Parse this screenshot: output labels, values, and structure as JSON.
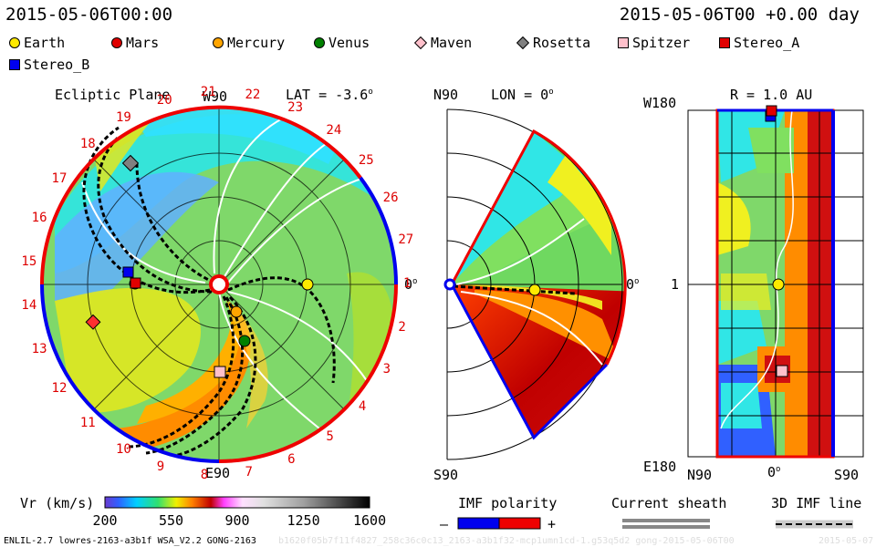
{
  "header": {
    "left_time": "2015-05-06T00:00",
    "right_time": "2015-05-06T00 +0.00 day"
  },
  "legend": [
    {
      "label": "Earth",
      "color": "#ffea00",
      "shape": "circle"
    },
    {
      "label": "Mars",
      "color": "#e00000",
      "shape": "circle"
    },
    {
      "label": "Mercury",
      "color": "#ffa500",
      "shape": "circle"
    },
    {
      "label": "Venus",
      "color": "#008000",
      "shape": "circle"
    },
    {
      "label": "Maven",
      "color": "#ffc0cb",
      "shape": "diamond"
    },
    {
      "label": "Rosetta",
      "color": "#808080",
      "shape": "diamond"
    },
    {
      "label": "Spitzer",
      "color": "#ffc0cb",
      "shape": "square"
    },
    {
      "label": "Stereo_A",
      "color": "#e00000",
      "shape": "square"
    },
    {
      "label": "Stereo_B",
      "color": "#0000ee",
      "shape": "square"
    }
  ],
  "panels": {
    "ecliptic": {
      "title": "Ecliptic Plane",
      "top_label": "W90",
      "bottom_label": "E90",
      "right_label": "0",
      "lat_label": "LAT = -3.6"
    },
    "meridional": {
      "top_label": "N90",
      "bottom_label": "S90",
      "right_label": "0",
      "lon_label": "LON = 0"
    },
    "map": {
      "top_left": "W180",
      "mid_left": "1",
      "bottom_left": "E180",
      "r_label": "R = 1.0 AU",
      "x_labels": [
        "N90",
        "0",
        "S90"
      ]
    }
  },
  "carrington_labels": [
    "19",
    "20",
    "21",
    "22",
    "23",
    "24",
    "25",
    "26",
    "27",
    "1",
    "2",
    "3",
    "4",
    "5",
    "6",
    "7",
    "8",
    "9",
    "10",
    "11",
    "12",
    "13",
    "14",
    "15",
    "16",
    "17",
    "18"
  ],
  "colorbar": {
    "label": "Vr (km/s)",
    "ticks": [
      "200",
      "550",
      "900",
      "1250",
      "1600"
    ],
    "range": [
      200,
      1600
    ]
  },
  "imf_legend": {
    "title": "IMF polarity",
    "minus": "–",
    "plus": "+"
  },
  "sheath_legend": {
    "title": "Current sheath"
  },
  "imf3d_legend": {
    "title": "3D IMF line"
  },
  "footer": {
    "model": "ENLIL-2.7 lowres-2163-a3b1f WSA_V2.2 GONG-2163",
    "run_id": "b1620f05b7f11f4827_258c36c0c13_2163-a3b1f32-mcp1umn1cd-1.g53q5d2 gong-2015-05-06T00",
    "date": "2015-05-07"
  },
  "chart_data": [
    {
      "type": "heatmap",
      "panel": "Ecliptic Plane",
      "quantity": "Vr (km/s)",
      "value_range": [
        200,
        1600
      ],
      "objects": [
        {
          "name": "Earth",
          "r_au": 1.0,
          "lon_deg": 0
        },
        {
          "name": "Mars",
          "r_au": 1.35,
          "lon_deg": 176
        },
        {
          "name": "Mercury",
          "r_au": 0.3,
          "lon_deg": -65
        },
        {
          "name": "Venus",
          "r_au": 0.72,
          "lon_deg": -60
        },
        {
          "name": "Maven",
          "r_au": 1.42,
          "lon_deg": -171
        },
        {
          "name": "Rosetta",
          "r_au": 1.5,
          "lon_deg": 130
        },
        {
          "name": "Spitzer",
          "r_au": 1.0,
          "lon_deg": -90
        },
        {
          "name": "Stereo_A",
          "r_au": 0.96,
          "lon_deg": 178
        },
        {
          "name": "Stereo_B",
          "r_au": 1.04,
          "lon_deg": 174
        }
      ]
    },
    {
      "type": "heatmap",
      "panel": "Meridional Plane",
      "quantity": "Vr (km/s)",
      "objects": [
        {
          "name": "Earth",
          "r_au": 1.0,
          "lat_deg": -3.6
        }
      ]
    },
    {
      "type": "heatmap",
      "panel": "R = 1.0 AU",
      "quantity": "Vr (km/s)",
      "objects": [
        {
          "name": "Earth",
          "lat_deg": -3.6,
          "lon_deg": 0
        },
        {
          "name": "Spitzer",
          "lat_deg": -4,
          "lon_deg": -90
        },
        {
          "name": "Stereo_A",
          "lat_deg": 0,
          "lon_deg": 180
        },
        {
          "name": "Stereo_B",
          "lat_deg": 0,
          "lon_deg": 176
        }
      ]
    }
  ]
}
